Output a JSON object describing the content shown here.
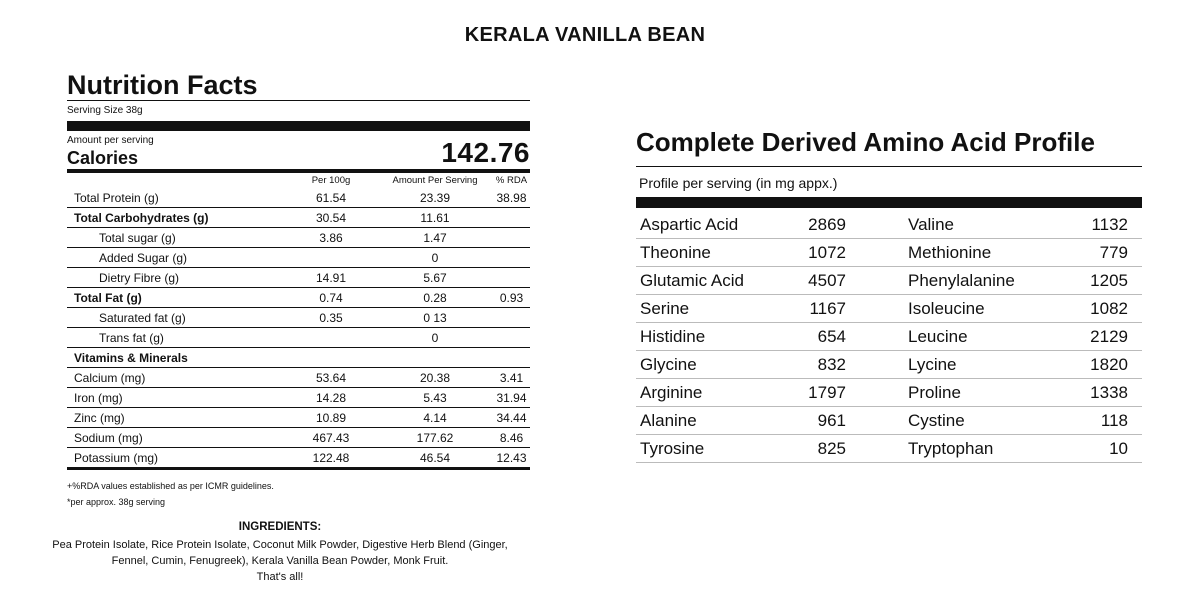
{
  "title": "KERALA VANILLA BEAN",
  "nutrition": {
    "heading": "Nutrition Facts",
    "serving_size": "Serving Size 38g",
    "amount_per_serving": "Amount per serving",
    "calories_label": "Calories",
    "calories_value": "142.76",
    "columns": [
      "Per 100g",
      "Amount Per Serving",
      "% RDA"
    ],
    "rows": [
      {
        "name": "Total Protein (g)",
        "per100": "61.54",
        "serving": "23.39",
        "rda": "38.98",
        "bold": false,
        "indent": false
      },
      {
        "name": "Total Carbohydrates (g)",
        "per100": "30.54",
        "serving": "11.61",
        "rda": "",
        "bold": true,
        "indent": false
      },
      {
        "name": "Total sugar (g)",
        "per100": "3.86",
        "serving": "1.47",
        "rda": "",
        "bold": false,
        "indent": true
      },
      {
        "name": "Added Sugar (g)",
        "per100": "",
        "serving": "0",
        "rda": "",
        "bold": false,
        "indent": true
      },
      {
        "name": "Dietry Fibre (g)",
        "per100": "14.91",
        "serving": "5.67",
        "rda": "",
        "bold": false,
        "indent": true
      },
      {
        "name": "Total Fat (g)",
        "per100": "0.74",
        "serving": "0.28",
        "rda": "0.93",
        "bold": true,
        "indent": false
      },
      {
        "name": "Saturated fat (g)",
        "per100": "0.35",
        "serving": "0 13",
        "rda": "",
        "bold": false,
        "indent": true
      },
      {
        "name": "Trans fat (g)",
        "per100": "",
        "serving": "0",
        "rda": "",
        "bold": false,
        "indent": true
      },
      {
        "name": "Vitamins & Minerals",
        "per100": "",
        "serving": "",
        "rda": "",
        "bold": true,
        "indent": false
      },
      {
        "name": "Calcium (mg)",
        "per100": "53.64",
        "serving": "20.38",
        "rda": "3.41",
        "bold": false,
        "indent": false
      },
      {
        "name": "Iron (mg)",
        "per100": "14.28",
        "serving": "5.43",
        "rda": "31.94",
        "bold": false,
        "indent": false
      },
      {
        "name": "Zinc (mg)",
        "per100": "10.89",
        "serving": "4.14",
        "rda": "34.44",
        "bold": false,
        "indent": false
      },
      {
        "name": "Sodium (mg)",
        "per100": "467.43",
        "serving": "177.62",
        "rda": "8.46",
        "bold": false,
        "indent": false
      },
      {
        "name": "Potassium (mg)",
        "per100": "122.48",
        "serving": "46.54",
        "rda": "12.43",
        "bold": false,
        "indent": false
      }
    ],
    "footnote1": "+%RDA values established as per ICMR guidelines.",
    "footnote2": "*per approx. 38g serving"
  },
  "ingredients": {
    "title": "INGREDIENTS:",
    "line1": "Pea Protein Isolate,  Rice Protein Isolate, Coconut Milk Powder, Digestive Herb Blend (Ginger,",
    "line2": "Fennel, Cumin, Fenugreek), Kerala Vanilla Bean Powder, Monk Fruit.",
    "line3": "That's all!"
  },
  "amino": {
    "title": "Complete Derived Amino Acid Profile",
    "subtitle": "Profile per serving (in mg appx.)",
    "rows": [
      {
        "a": "Aspartic Acid",
        "av": "2869",
        "b": "Valine",
        "bv": "1132"
      },
      {
        "a": "Theonine",
        "av": "1072",
        "b": "Methionine",
        "bv": "779"
      },
      {
        "a": "Glutamic Acid",
        "av": "4507",
        "b": "Phenylalanine",
        "bv": "1205"
      },
      {
        "a": "Serine",
        "av": "1167",
        "b": "Isoleucine",
        "bv": "1082"
      },
      {
        "a": "Histidine",
        "av": "654",
        "b": "Leucine",
        "bv": "2129"
      },
      {
        "a": "Glycine",
        "av": "832",
        "b": "Lycine",
        "bv": "1820"
      },
      {
        "a": "Arginine",
        "av": "1797",
        "b": "Proline",
        "bv": "1338"
      },
      {
        "a": "Alanine",
        "av": "961",
        "b": "Cystine",
        "bv": "118"
      },
      {
        "a": "Tyrosine",
        "av": "825",
        "b": "Tryptophan",
        "bv": "10"
      }
    ]
  }
}
